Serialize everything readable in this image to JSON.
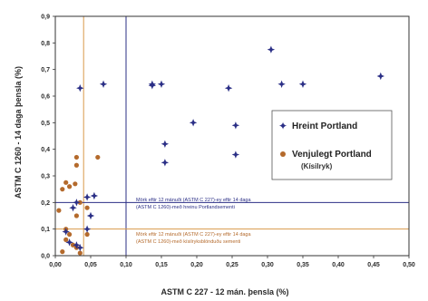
{
  "colors": {
    "series1": "#2b2f86",
    "series2": "#b46a2c",
    "vline_blue": "#2b2f86",
    "vline_orange": "#d99a4a",
    "axis": "#333333"
  },
  "chart_data": {
    "type": "scatter",
    "xlabel": "ASTM C 227 - 12 mán. þensla (%)",
    "ylabel": "ASTM C 1260 - 14 daga þensla (%)",
    "xlim": [
      0,
      0.5
    ],
    "ylim": [
      0,
      0.9
    ],
    "xticks": [
      "0,00",
      "0,05",
      "0,10",
      "0,15",
      "0,20",
      "0,25",
      "0,30",
      "0,35",
      "0,40",
      "0,45",
      "0,50"
    ],
    "yticks": [
      "0,0",
      "0,1",
      "0,2",
      "0,3",
      "0,4",
      "0,5",
      "0,6",
      "0,7",
      "0,8",
      "0,9"
    ],
    "grid": false,
    "legend_position": "right",
    "series": [
      {
        "name": "Hreint Portland",
        "marker": "star",
        "points": [
          [
            0.035,
            0.63
          ],
          [
            0.068,
            0.645
          ],
          [
            0.137,
            0.64
          ],
          [
            0.137,
            0.645
          ],
          [
            0.15,
            0.645
          ],
          [
            0.245,
            0.63
          ],
          [
            0.305,
            0.775
          ],
          [
            0.32,
            0.645
          ],
          [
            0.35,
            0.645
          ],
          [
            0.46,
            0.675
          ],
          [
            0.195,
            0.5
          ],
          [
            0.255,
            0.49
          ],
          [
            0.155,
            0.42
          ],
          [
            0.155,
            0.35
          ],
          [
            0.255,
            0.38
          ],
          [
            0.045,
            0.22
          ],
          [
            0.055,
            0.225
          ],
          [
            0.03,
            0.2
          ],
          [
            0.05,
            0.15
          ],
          [
            0.045,
            0.1
          ],
          [
            0.02,
            0.05
          ],
          [
            0.03,
            0.04
          ],
          [
            0.035,
            0.03
          ],
          [
            0.015,
            0.09
          ],
          [
            0.025,
            0.18
          ]
        ]
      },
      {
        "name": "Venjulegt Portland (Kísilryk)",
        "marker": "circle",
        "points": [
          [
            0.06,
            0.37
          ],
          [
            0.03,
            0.37
          ],
          [
            0.03,
            0.34
          ],
          [
            0.015,
            0.275
          ],
          [
            0.028,
            0.27
          ],
          [
            0.02,
            0.26
          ],
          [
            0.01,
            0.25
          ],
          [
            0.035,
            0.2
          ],
          [
            0.045,
            0.18
          ],
          [
            0.03,
            0.15
          ],
          [
            0.005,
            0.17
          ],
          [
            0.015,
            0.1
          ],
          [
            0.02,
            0.08
          ],
          [
            0.045,
            0.08
          ],
          [
            0.015,
            0.06
          ],
          [
            0.025,
            0.04
          ],
          [
            0.03,
            0.03
          ],
          [
            0.01,
            0.015
          ],
          [
            0.035,
            0.01
          ]
        ]
      }
    ],
    "reference_lines": [
      {
        "axis": "x",
        "value": 0.04,
        "color": "orange"
      },
      {
        "axis": "x",
        "value": 0.1,
        "color": "blue"
      },
      {
        "axis": "y",
        "value": 0.2,
        "color": "blue"
      },
      {
        "axis": "y",
        "value": 0.1,
        "color": "orange"
      }
    ],
    "annotations": [
      {
        "line1": "Mörk eftir 12 mánuði (ASTM C 227)-ey eftir 14 daga",
        "line2": "(ASTM C 1260)-með hreinu Portlandsementi",
        "color": "blue"
      },
      {
        "line1": "Mörk eftir 12 mánuði (ASTM C 227)-ey eftir 14 daga",
        "line2": "(ASTM C 1260)-með kísilryksblönduðu sementi",
        "color": "orange"
      }
    ],
    "legend": [
      {
        "label": "Hreint Portland",
        "sub": ""
      },
      {
        "label": "Venjulegt Portland",
        "sub": "(Kísilryk)"
      }
    ]
  }
}
